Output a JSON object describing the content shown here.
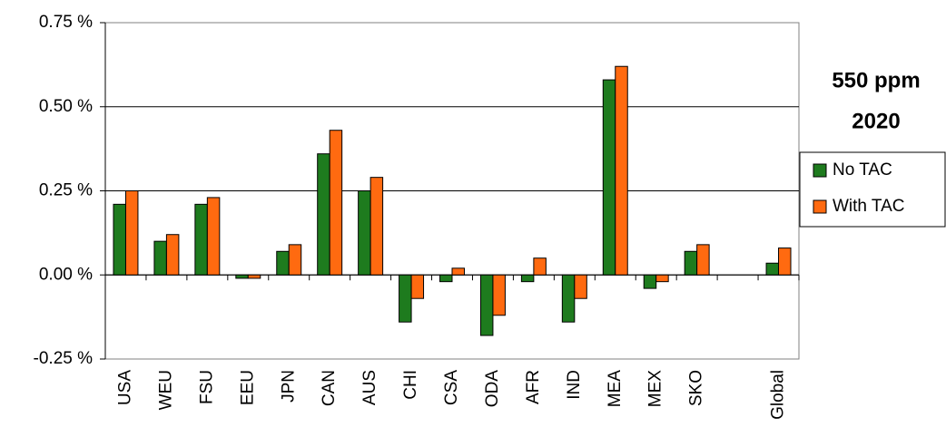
{
  "chart_data": {
    "type": "bar",
    "annotation": [
      "550 ppm",
      "2020"
    ],
    "categories": [
      "USA",
      "WEU",
      "FSU",
      "EEU",
      "JPN",
      "CAN",
      "AUS",
      "CHI",
      "CSA",
      "ODA",
      "AFR",
      "IND",
      "MEA",
      "MEX",
      "SKO",
      null,
      "Global"
    ],
    "series": [
      {
        "name": "No TAC",
        "color": "#1e7b1e",
        "values": [
          0.21,
          0.1,
          0.21,
          -0.01,
          0.07,
          0.36,
          0.25,
          -0.14,
          -0.02,
          -0.18,
          -0.02,
          -0.14,
          0.58,
          -0.04,
          0.07,
          null,
          0.035
        ]
      },
      {
        "name": "With TAC",
        "color": "#ff6a10",
        "values": [
          0.25,
          0.12,
          0.23,
          -0.01,
          0.09,
          0.43,
          0.29,
          -0.07,
          0.02,
          -0.12,
          0.05,
          -0.07,
          0.62,
          -0.02,
          0.09,
          null,
          0.08
        ]
      }
    ],
    "ylim": [
      -0.25,
      0.75
    ],
    "yticks": [
      {
        "value": -0.25,
        "label": "-0.25 %"
      },
      {
        "value": 0,
        "label": "0.00 %"
      },
      {
        "value": 0.25,
        "label": "0.25 %"
      },
      {
        "value": 0.5,
        "label": "0.50 %"
      },
      {
        "value": 0.75,
        "label": "0.75 %"
      }
    ],
    "grid": true,
    "legend": "right"
  }
}
